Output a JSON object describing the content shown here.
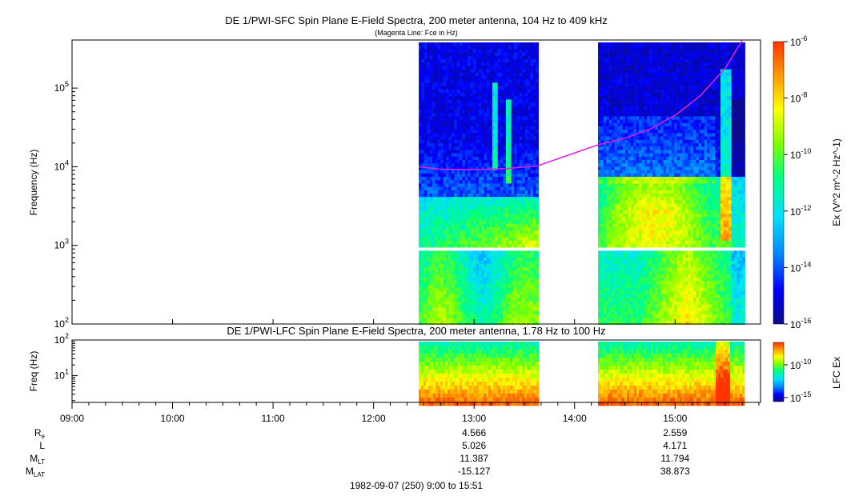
{
  "colors": {
    "background": "#ffffff",
    "axis": "#000000",
    "fce_line": "#e020e0",
    "colormap": [
      "#0a0a8c",
      "#0000ff",
      "#0088ff",
      "#00e0ff",
      "#00ff80",
      "#7fff00",
      "#ffff00",
      "#ff9900",
      "#ff3300"
    ]
  },
  "chart_data": [
    {
      "type": "heatmap",
      "panel": "sfc",
      "title": "DE 1/PWI-SFC  Spin Plane E-Field Spectra, 200 meter antenna, 104 Hz to 409 kHz",
      "subtitle": "(Magenta Line: Fce in Hz)",
      "xlabel": "",
      "ylabel": "Frequency (Hz)",
      "yscale": "log",
      "ylim": [
        100,
        409000
      ],
      "yticks": [
        "10^2",
        "10^3",
        "10^4",
        "10^5"
      ],
      "xlim": [
        "09:00",
        "15:51"
      ],
      "data_intervals": [
        [
          "12:27",
          "13:38"
        ],
        [
          "14:14",
          "15:41"
        ]
      ],
      "colorbar": {
        "label": "Ex (V^2 m^-2 Hz^-1)",
        "scale": "log",
        "range": [
          1e-16,
          1e-06
        ],
        "ticks": [
          "10^-6",
          "10^-8",
          "10^-10",
          "10^-12",
          "10^-14",
          "10^-16"
        ]
      },
      "fce_line": {
        "name": "Fce",
        "x": [
          "12:27",
          "12:40",
          "13:00",
          "13:20",
          "13:38",
          "14:14",
          "14:30",
          "14:45",
          "15:00",
          "15:15",
          "15:30",
          "15:40"
        ],
        "y": [
          10000,
          9300,
          9200,
          9500,
          10300,
          19000,
          23000,
          30000,
          45000,
          80000,
          180000,
          400000
        ]
      }
    },
    {
      "type": "heatmap",
      "panel": "lfc",
      "title": "DE 1/PWI-LFC  Spin Plane E-Field Spectra, 200 meter antenna, 1.78 Hz to 100 Hz",
      "xlabel": "",
      "ylabel": "Freq (Hz)",
      "yscale": "log",
      "ylim": [
        1.78,
        100
      ],
      "yticks": [
        "10^1",
        "10^2"
      ],
      "xlim": [
        "09:00",
        "15:51"
      ],
      "xticks": [
        "09:00",
        "10:00",
        "11:00",
        "12:00",
        "13:00",
        "14:00",
        "15:00"
      ],
      "data_intervals": [
        [
          "12:27",
          "13:38"
        ],
        [
          "14:14",
          "15:41"
        ]
      ],
      "colorbar": {
        "label": "LFC Ex",
        "scale": "log",
        "ticks": [
          "10^-10",
          "10^-15"
        ]
      }
    }
  ],
  "ephemeris": {
    "labels": [
      "R",
      "L",
      "M",
      "M"
    ],
    "label_subs": [
      "e",
      "",
      "LT",
      "LAT"
    ],
    "times": [
      "13:00",
      "15:00"
    ],
    "rows": [
      [
        "4.566",
        "2.559"
      ],
      [
        "5.026",
        "4.171"
      ],
      [
        "11.387",
        "11.794"
      ],
      [
        "-15.127",
        "38.873"
      ]
    ]
  },
  "footer": "1982-09-07 (250) 9:00 to 15:51"
}
